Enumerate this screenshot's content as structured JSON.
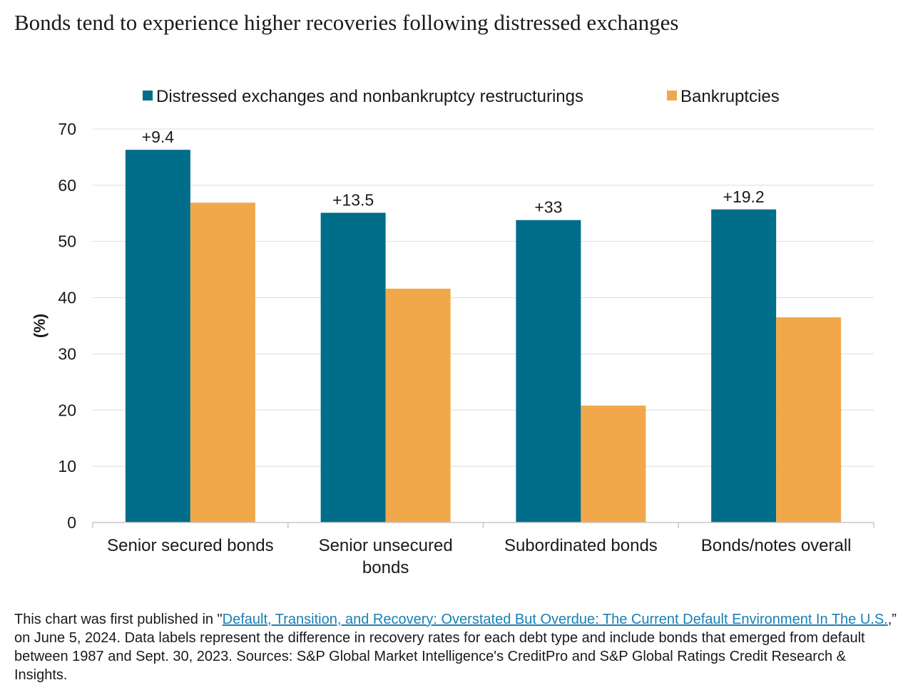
{
  "title": "Bonds tend to experience higher recoveries following distressed exchanges",
  "colors": {
    "series1": "#006d8a",
    "series2": "#f0a84b",
    "grid": "#dcdcdc",
    "axis": "#c8c8c8",
    "text": "#1a1a1a",
    "link": "#1a7fb5"
  },
  "chart_data": {
    "type": "bar",
    "categories": [
      [
        "Senior secured bonds"
      ],
      [
        "Senior unsecured",
        "bonds"
      ],
      [
        "Subordinated bonds"
      ],
      [
        "Bonds/notes overall"
      ]
    ],
    "series": [
      {
        "name": "Distressed exchanges and nonbankruptcy restructurings",
        "values": [
          66.3,
          55.1,
          53.8,
          55.7
        ]
      },
      {
        "name": "Bankruptcies",
        "values": [
          56.9,
          41.6,
          20.8,
          36.5
        ]
      }
    ],
    "data_labels": [
      "+9.4",
      "+13.5",
      "+33",
      "+19.2"
    ],
    "ylabel": "(%)",
    "ylim": [
      0,
      70
    ],
    "yticks": [
      0,
      10,
      20,
      30,
      40,
      50,
      60,
      70
    ],
    "grid": true,
    "legend_position": "top"
  },
  "footnote": {
    "prefix": "This chart was first published in \"",
    "link_text": "Default, Transition, and Recovery: Overstated But Overdue: The Current Default Environment In The U.S.",
    "suffix": ",” on June 5, 2024. Data labels represent the difference in recovery rates for each debt type and include bonds that emerged from default between 1987 and Sept. 30, 2023. Sources: S&P Global Market Intelligence's CreditPro and S&P Global Ratings Credit Research & Insights."
  }
}
